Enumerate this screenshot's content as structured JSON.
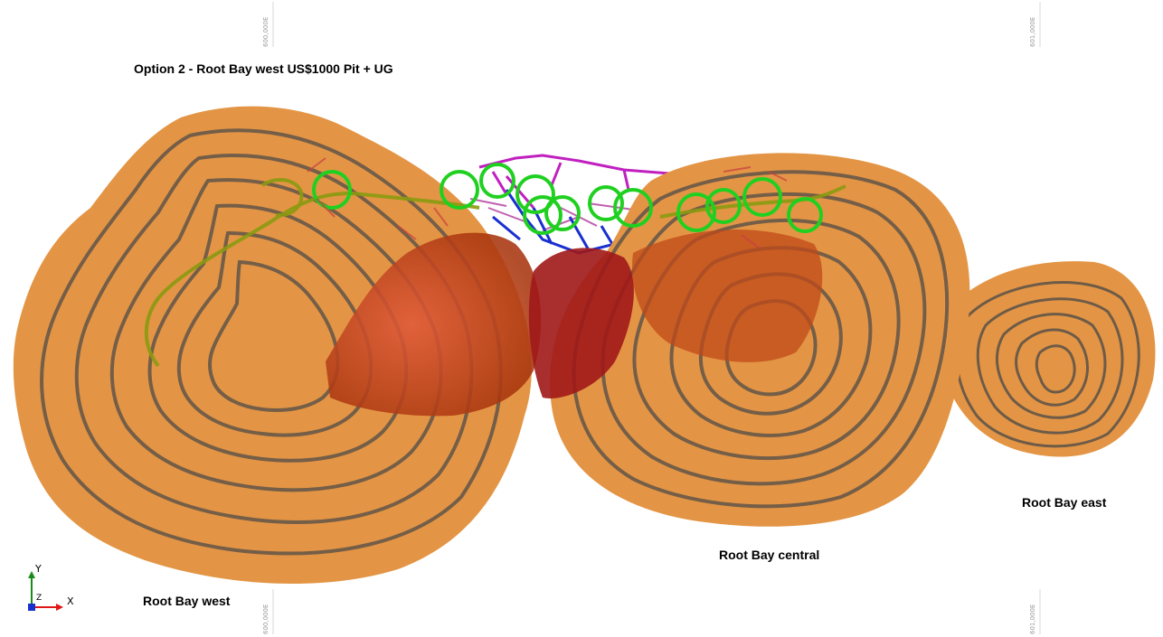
{
  "title": "Option 2 - Root Bay west US$1000 Pit + UG",
  "labels": {
    "west": "Root Bay west",
    "central": "Root Bay central",
    "east": "Root Bay east"
  },
  "grid_ticks": {
    "top_left": "600,000E",
    "top_right": "601,000E",
    "bottom_left": "600,000E",
    "bottom_right": "601,000E"
  },
  "axes": {
    "y": "Y",
    "x": "X",
    "z": "Z"
  },
  "colors": {
    "pit": "#e39545",
    "bench": "#5a5148",
    "ore_red": "#b5271a",
    "ramp_green": "#20d020",
    "dev_magenta": "#c020c0",
    "dev_blue": "#1830d0",
    "ramp_olive": "#8a9a10"
  }
}
